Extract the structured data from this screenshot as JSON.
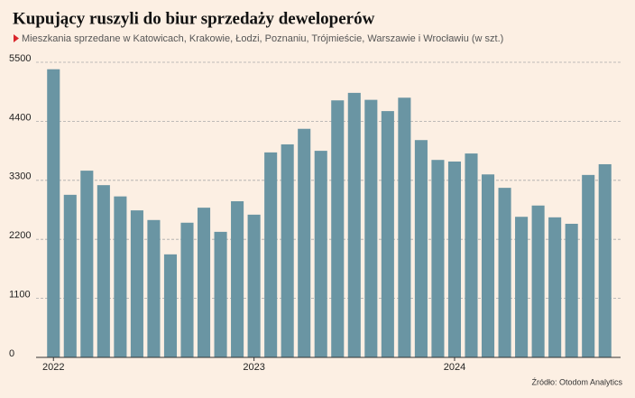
{
  "chart_data": {
    "type": "bar",
    "title": "Kupujący ruszyli do biur sprzedaży deweloperów",
    "subtitle": "Mieszkania sprzedane w Katowicach, Krakowie, Łodzi, Poznaniu, Trójmieście, Warszawie i Wrocławiu (w szt.)",
    "source": "Źródło: Otodom Analytics",
    "categories": [
      "2022",
      null,
      null,
      null,
      null,
      null,
      null,
      null,
      null,
      null,
      null,
      null,
      "2023",
      null,
      null,
      null,
      null,
      null,
      null,
      null,
      null,
      null,
      null,
      null,
      "2024",
      null,
      null,
      null,
      null,
      null,
      null,
      null,
      null,
      null
    ],
    "values": [
      5370,
      3030,
      3480,
      3210,
      3000,
      2740,
      2560,
      1920,
      2510,
      2790,
      2340,
      2910,
      2660,
      3820,
      3970,
      4260,
      3850,
      4790,
      4930,
      4800,
      4590,
      4840,
      4050,
      3680,
      3650,
      3800,
      3410,
      3160,
      2620,
      2830,
      2610,
      2490,
      3400,
      3600
    ],
    "color": "#6a95a3",
    "ylim": [
      0,
      5500
    ],
    "yticks": [
      0,
      1100,
      2200,
      3300,
      4400,
      5500
    ],
    "grid": true
  }
}
